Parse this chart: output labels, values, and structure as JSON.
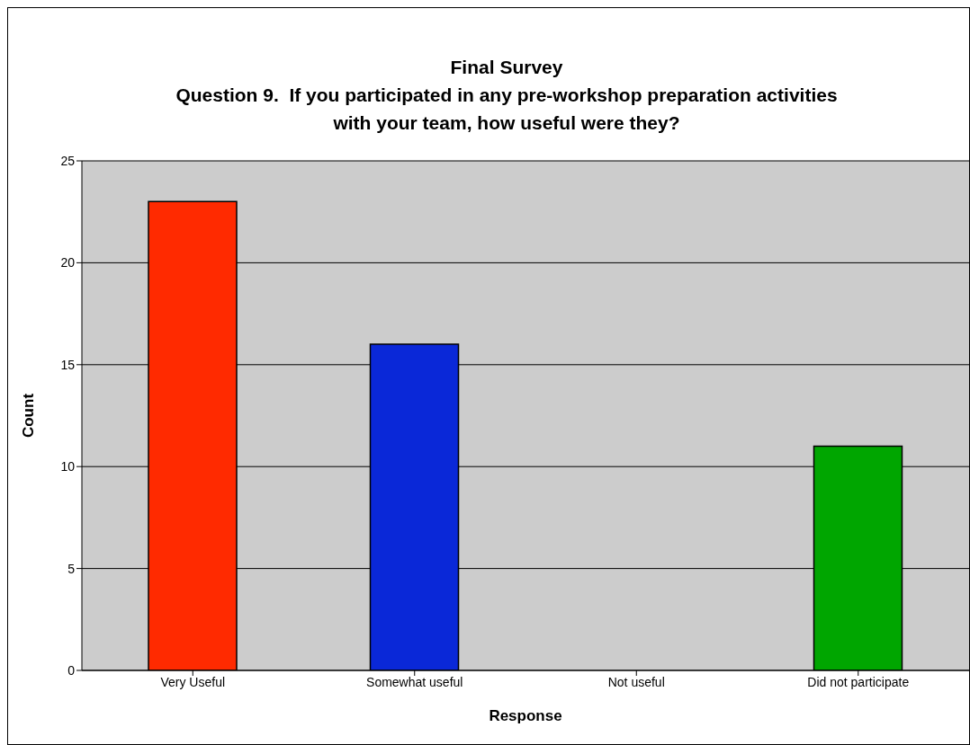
{
  "chart_data": {
    "type": "bar",
    "title": "Final Survey\nQuestion 9.  If you participated in any pre-workshop preparation activities\nwith your team, how useful were they?",
    "xlabel": "Response",
    "ylabel": "Count",
    "categories": [
      "Very Useful",
      "Somewhat useful",
      "Not useful",
      "Did not participate"
    ],
    "values": [
      23,
      16,
      0,
      11
    ],
    "colors": [
      "#ff2a00",
      "#0a28d8",
      "#6a3d9a",
      "#00a600"
    ],
    "ylim": [
      0,
      25
    ],
    "yticks": [
      0,
      5,
      10,
      15,
      20,
      25
    ],
    "grid": "y"
  }
}
